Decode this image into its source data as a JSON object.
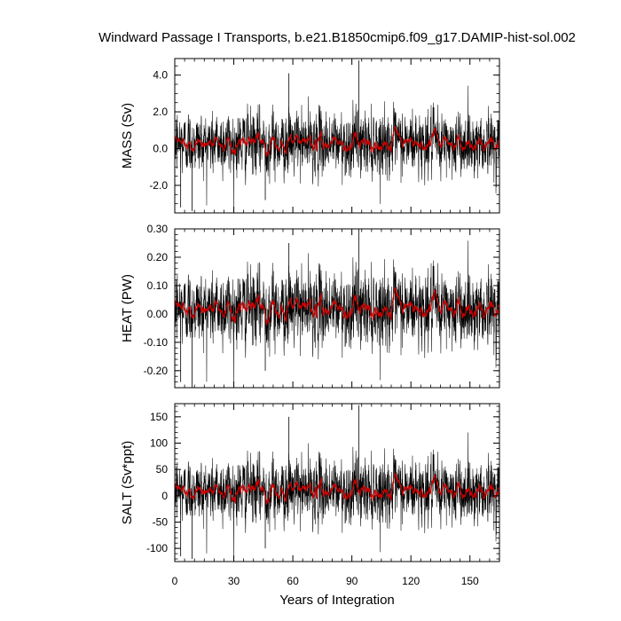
{
  "chart_data": {
    "title": "Windward Passage I Transports, b.e21.B1850cmip6.f09_g17.DAMIP-hist-sol.002",
    "xlabel": "Years of Integration",
    "xlim": [
      0,
      165
    ],
    "xticks": [
      0,
      30,
      60,
      90,
      120,
      150
    ],
    "xtick_labels": [
      "0",
      "30",
      "60",
      "90",
      "120",
      "150"
    ],
    "colors": {
      "monthly": "#000000",
      "smoothed": "#cc0000"
    },
    "panels": [
      {
        "type": "line",
        "ylabel": "MASS (Sv)",
        "ylim": [
          -3.5,
          4.9
        ],
        "yticks": [
          -2.0,
          0.0,
          2.0,
          4.0
        ],
        "ytick_labels": [
          "-2.0",
          "0.0",
          "2.0",
          "4.0"
        ],
        "ytick_minor": 0.5,
        "series": [
          {
            "kind": "monthly",
            "mean": 0.3,
            "std": 0.85,
            "max": 4.8,
            "min": -3.4,
            "spikes": [
              [
                58,
                4.1
              ],
              [
                93.5,
                4.8
              ],
              [
                8.8,
                -3.4
              ],
              [
                46,
                -2.8
              ],
              [
                3,
                -3.2
              ]
            ]
          },
          {
            "kind": "smoothed",
            "mean": 0.3,
            "std": 0.25
          }
        ]
      },
      {
        "type": "line",
        "ylabel": "HEAT (PW)",
        "ylim": [
          -0.26,
          0.3
        ],
        "yticks": [
          -0.2,
          -0.1,
          0.0,
          0.1,
          0.2,
          0.3
        ],
        "ytick_labels": [
          "-0.20",
          "-0.10",
          "0.00",
          "0.10",
          "0.20",
          "0.30"
        ],
        "ytick_minor": 0.02,
        "series": [
          {
            "kind": "monthly",
            "mean": 0.02,
            "std": 0.065,
            "max": 0.3,
            "min": -0.26,
            "spikes": [
              [
                58,
                0.25
              ],
              [
                93.5,
                0.3
              ],
              [
                8.8,
                -0.26
              ],
              [
                3,
                -0.24
              ],
              [
                46,
                -0.2
              ]
            ]
          },
          {
            "kind": "smoothed",
            "mean": 0.02,
            "std": 0.02
          }
        ]
      },
      {
        "type": "line",
        "ylabel": "SALT (Sv*ppt)",
        "ylim": [
          -125,
          175
        ],
        "yticks": [
          -100,
          -50,
          0,
          50,
          100,
          150
        ],
        "ytick_labels": [
          "-100",
          "-50",
          "0",
          "50",
          "100",
          "150"
        ],
        "ytick_minor": 10,
        "series": [
          {
            "kind": "monthly",
            "mean": 10,
            "std": 30,
            "max": 172,
            "min": -120,
            "spikes": [
              [
                58,
                150
              ],
              [
                93.5,
                172
              ],
              [
                8.8,
                -120
              ],
              [
                3,
                -115
              ],
              [
                46,
                -100
              ]
            ]
          },
          {
            "kind": "smoothed",
            "mean": 10,
            "std": 9
          }
        ]
      }
    ]
  }
}
